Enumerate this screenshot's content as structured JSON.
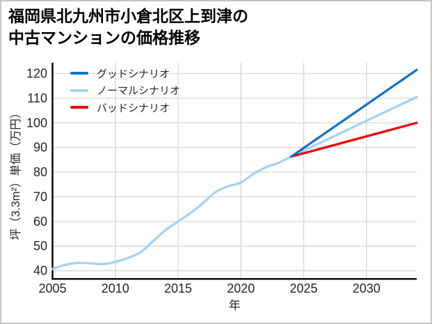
{
  "figure": {
    "background": "#ffffff",
    "border_color": "#c4c4c4"
  },
  "title": {
    "line1": "福岡県北九州市小倉北区上到津の",
    "line2": "中古マンションの価格推移"
  },
  "chart_data": {
    "type": "line",
    "title": "福岡県北九州市小倉北区上到津の中古マンションの価格推移",
    "xlabel": "年",
    "ylabel": "坪（3.3m²）単価（万円）",
    "xlim": [
      2005,
      2034
    ],
    "ylim": [
      36.7,
      124.4
    ],
    "xticks": [
      2005,
      2010,
      2015,
      2020,
      2025,
      2030
    ],
    "yticks": [
      40,
      50,
      60,
      70,
      80,
      90,
      100,
      110,
      120
    ],
    "grid": true,
    "grid_color": "#d9d9d9",
    "axis_color": "#000000",
    "tick_color": "#262626",
    "legend_position": "upper left",
    "history": {
      "color": "#a6d1f3",
      "x": [
        2005,
        2006,
        2007,
        2008,
        2009,
        2010,
        2011,
        2012,
        2013,
        2014,
        2015,
        2016,
        2017,
        2018,
        2019,
        2020,
        2021,
        2022,
        2023,
        2024
      ],
      "y": [
        40.7,
        42.4,
        43.2,
        43.0,
        42.7,
        43.6,
        45.2,
        47.5,
        52.0,
        56.5,
        60.0,
        63.5,
        67.5,
        72.0,
        74.3,
        75.8,
        79.3,
        82.0,
        83.8,
        86.3
      ]
    },
    "series": [
      {
        "name": "グッドシナリオ",
        "color": "#1173ca",
        "x": [
          2024,
          2034
        ],
        "y": [
          86.3,
          121.5
        ]
      },
      {
        "name": "ノーマルシナリオ",
        "color": "#a6d1f3",
        "x": [
          2024,
          2034
        ],
        "y": [
          86.3,
          110.5
        ]
      },
      {
        "name": "バッドシナリオ",
        "color": "#ee0000",
        "x": [
          2024,
          2034
        ],
        "y": [
          86.3,
          100.0
        ]
      }
    ]
  }
}
